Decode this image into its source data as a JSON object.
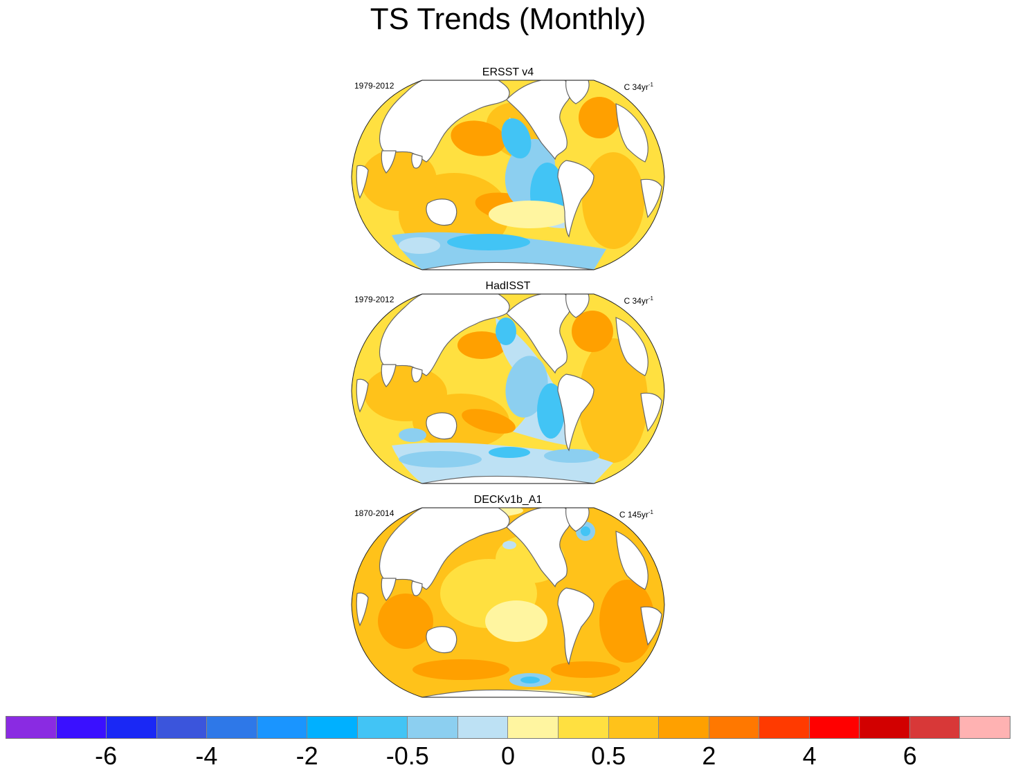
{
  "title": "TS Trends (Monthly)",
  "panels": [
    {
      "title": "ERSST v4",
      "period": "1979-2012",
      "units_main": "C 34yr",
      "units_sup": "-1",
      "pattern": "la-nina"
    },
    {
      "title": "HadISST",
      "period": "1979-2012",
      "units_main": "C 34yr",
      "units_sup": "-1",
      "pattern": "la-nina-noisy"
    },
    {
      "title": "DECKv1b_A1",
      "period": "1870-2014",
      "units_main": "C 145yr",
      "units_sup": "-1",
      "pattern": "uniform-warming"
    }
  ],
  "colorbar": {
    "colors": [
      "#8a2be2",
      "#3a10ff",
      "#1a28f5",
      "#3b55dc",
      "#2e78e8",
      "#1a95ff",
      "#00b0ff",
      "#42c4f5",
      "#8ccff0",
      "#bde1f4",
      "#fff5a0",
      "#ffe040",
      "#ffc21a",
      "#ffa000",
      "#ff7800",
      "#ff3a00",
      "#ff0000",
      "#d20000",
      "#d83838",
      "#ffb2b2"
    ],
    "labels": [
      "-6",
      "-4",
      "-2",
      "-0.5",
      "0",
      "0.5",
      "2",
      "4",
      "6"
    ]
  }
}
